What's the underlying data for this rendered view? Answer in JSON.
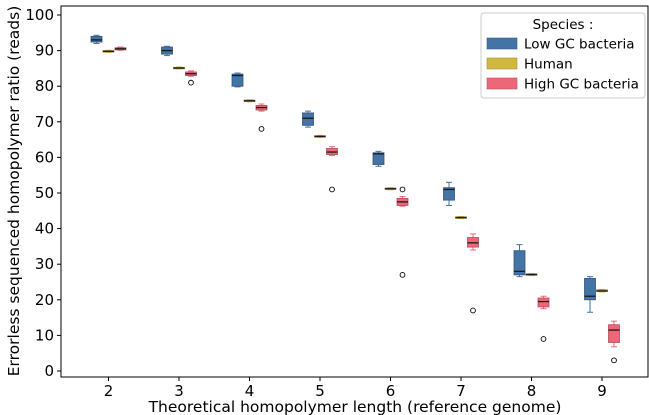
{
  "chart_data": {
    "type": "box",
    "title": "",
    "xlabel": "Theoretical homopolymer length (reference genome)",
    "ylabel": "Errorless sequenced homopolymer ratio (reads)",
    "x_categories": [
      2,
      3,
      4,
      5,
      6,
      7,
      8,
      9
    ],
    "x_ticks": [
      "2",
      "3",
      "4",
      "5",
      "6",
      "7",
      "8",
      "9"
    ],
    "ylim": [
      -2,
      102
    ],
    "y_ticks": [
      "0",
      "10",
      "20",
      "30",
      "40",
      "50",
      "60",
      "70",
      "80",
      "90",
      "100"
    ],
    "grid": false,
    "legend": {
      "title": "Species :",
      "placement": "top-right",
      "entries": [
        "Low GC bacteria",
        "Human",
        "High GC bacteria"
      ]
    },
    "series": [
      {
        "name": "Low GC bacteria",
        "color": "#4473a5",
        "boxes": [
          {
            "x": 2,
            "whislo": 92.0,
            "q1": 92.4,
            "med": 93.0,
            "q3": 94.0,
            "whishi": 94.3,
            "fliers": []
          },
          {
            "x": 3,
            "whislo": 88.6,
            "q1": 89.0,
            "med": 90.0,
            "q3": 91.0,
            "whishi": 91.2,
            "fliers": []
          },
          {
            "x": 4,
            "whislo": 79.8,
            "q1": 80.0,
            "med": 83.0,
            "q3": 83.4,
            "whishi": 83.7,
            "fliers": []
          },
          {
            "x": 5,
            "whislo": 68.5,
            "q1": 69.0,
            "med": 71.0,
            "q3": 72.5,
            "whishi": 73.0,
            "fliers": []
          },
          {
            "x": 6,
            "whislo": 57.5,
            "q1": 58.0,
            "med": 61.0,
            "q3": 61.3,
            "whishi": 61.7,
            "fliers": []
          },
          {
            "x": 7,
            "whislo": 46.5,
            "q1": 48.0,
            "med": 51.0,
            "q3": 51.5,
            "whishi": 53.0,
            "fliers": []
          },
          {
            "x": 8,
            "whislo": 26.5,
            "q1": 27.0,
            "med": 28.0,
            "q3": 33.8,
            "whishi": 35.5,
            "fliers": []
          },
          {
            "x": 9,
            "whislo": 16.5,
            "q1": 20.0,
            "med": 21.0,
            "q3": 26.0,
            "whishi": 26.5,
            "fliers": []
          }
        ]
      },
      {
        "name": "Human",
        "color": "#d0b840",
        "boxes": [
          {
            "x": 2,
            "whislo": 89.5,
            "q1": 89.6,
            "med": 89.8,
            "q3": 90.0,
            "whishi": 90.1,
            "fliers": []
          },
          {
            "x": 3,
            "whislo": 84.9,
            "q1": 85.0,
            "med": 85.1,
            "q3": 85.3,
            "whishi": 85.4,
            "fliers": []
          },
          {
            "x": 4,
            "whislo": 75.6,
            "q1": 75.7,
            "med": 75.9,
            "q3": 76.1,
            "whishi": 76.2,
            "fliers": []
          },
          {
            "x": 5,
            "whislo": 65.6,
            "q1": 65.7,
            "med": 65.9,
            "q3": 66.1,
            "whishi": 66.2,
            "fliers": []
          },
          {
            "x": 6,
            "whislo": 50.9,
            "q1": 51.0,
            "med": 51.2,
            "q3": 51.4,
            "whishi": 51.5,
            "fliers": []
          },
          {
            "x": 7,
            "whislo": 42.8,
            "q1": 42.9,
            "med": 43.1,
            "q3": 43.3,
            "whishi": 43.4,
            "fliers": []
          },
          {
            "x": 8,
            "whislo": 26.8,
            "q1": 26.9,
            "med": 27.1,
            "q3": 27.3,
            "whishi": 27.4,
            "fliers": []
          },
          {
            "x": 9,
            "whislo": 22.2,
            "q1": 22.3,
            "med": 22.5,
            "q3": 22.8,
            "whishi": 22.9,
            "fliers": []
          }
        ]
      },
      {
        "name": "High GC bacteria",
        "color": "#ec6878",
        "boxes": [
          {
            "x": 2,
            "whislo": 90.1,
            "q1": 90.2,
            "med": 90.5,
            "q3": 90.8,
            "whishi": 91.0,
            "fliers": []
          },
          {
            "x": 3,
            "whislo": 82.8,
            "q1": 83.0,
            "med": 83.5,
            "q3": 84.0,
            "whishi": 84.3,
            "fliers": [
              81.0
            ]
          },
          {
            "x": 4,
            "whislo": 73.0,
            "q1": 73.3,
            "med": 74.0,
            "q3": 74.6,
            "whishi": 75.0,
            "fliers": [
              68.0
            ]
          },
          {
            "x": 5,
            "whislo": 60.5,
            "q1": 60.8,
            "med": 61.5,
            "q3": 62.5,
            "whishi": 63.0,
            "fliers": [
              51.0
            ]
          },
          {
            "x": 6,
            "whislo": 46.3,
            "q1": 46.5,
            "med": 47.5,
            "q3": 48.5,
            "whishi": 49.0,
            "fliers": [
              51.0,
              27.0
            ]
          },
          {
            "x": 7,
            "whislo": 34.0,
            "q1": 34.8,
            "med": 36.0,
            "q3": 37.5,
            "whishi": 38.5,
            "fliers": [
              17.0
            ]
          },
          {
            "x": 8,
            "whislo": 17.5,
            "q1": 18.0,
            "med": 19.5,
            "q3": 20.5,
            "whishi": 21.0,
            "fliers": [
              9.0
            ]
          },
          {
            "x": 9,
            "whislo": 6.8,
            "q1": 8.0,
            "med": 11.5,
            "q3": 13.0,
            "whishi": 14.0,
            "fliers": [
              3.0
            ]
          }
        ]
      }
    ]
  }
}
